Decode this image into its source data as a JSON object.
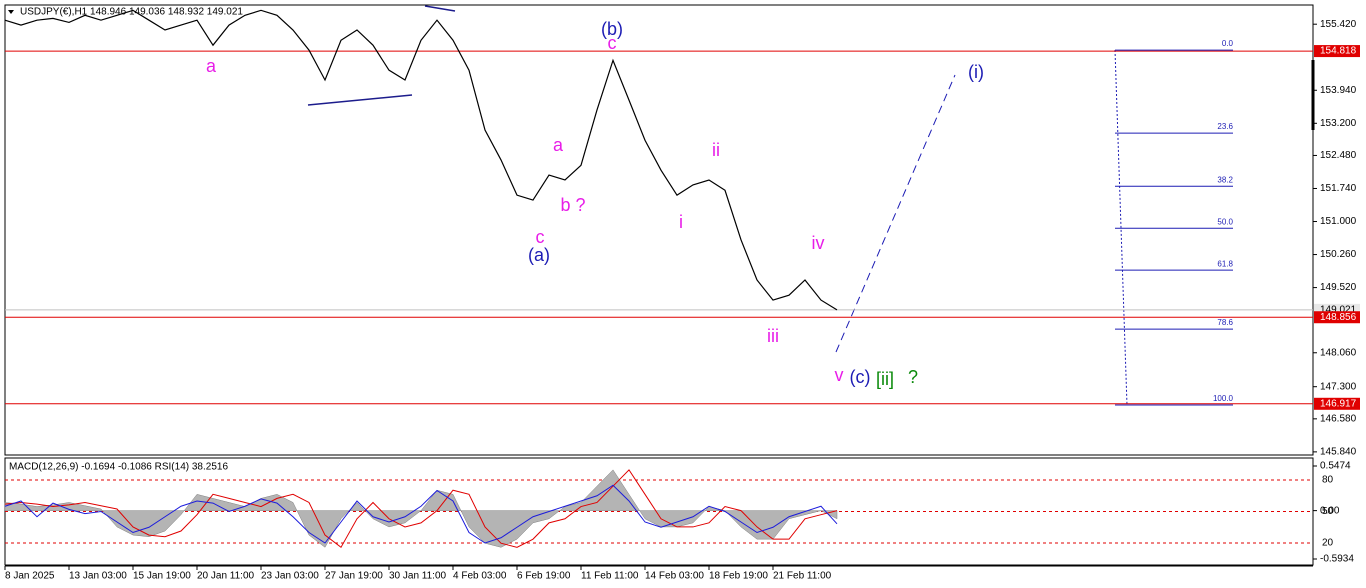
{
  "chart_data": [
    {
      "type": "line",
      "title": "USDJPY(€),H1  148.946 149.036 148.932 149.021",
      "categories": [
        "8 Jan 2025",
        null,
        null,
        null,
        "13 Jan 03:00",
        null,
        null,
        null,
        "15 Jan 19:00",
        null,
        null,
        null,
        "20 Jan 11:00",
        null,
        null,
        null,
        "23 Jan 03:00",
        null,
        null,
        null,
        "27 Jan 19:00",
        null,
        null,
        null,
        "30 Jan 11:00",
        null,
        null,
        null,
        "4 Feb 03:00",
        null,
        null,
        null,
        "6 Feb 19:00",
        null,
        null,
        null,
        "11 Feb 11:00",
        null,
        null,
        null,
        "14 Feb 03:00",
        null,
        null,
        null,
        "18 Feb 19:00",
        null,
        null,
        null,
        "21 Feb 11:00",
        null,
        null,
        null,
        null
      ],
      "series": [
        {
          "color": "#000000",
          "values": [
            155.51,
            155.4,
            155.51,
            155.55,
            155.46,
            155.62,
            155.51,
            155.62,
            155.73,
            155.51,
            155.29,
            155.4,
            155.51,
            154.95,
            155.4,
            155.62,
            155.73,
            155.62,
            155.29,
            154.84,
            154.17,
            155.06,
            155.29,
            154.95,
            154.39,
            154.17,
            155.06,
            155.51,
            155.06,
            154.39,
            153.05,
            152.38,
            151.59,
            151.48,
            152.04,
            151.93,
            152.26,
            153.5,
            154.61,
            153.72,
            152.82,
            152.15,
            151.59,
            151.82,
            151.93,
            151.7,
            150.59,
            149.69,
            149.24,
            149.35,
            149.69,
            149.24,
            149.02
          ]
        }
      ],
      "ylim": [
        145.77,
        155.85
      ],
      "yticks": [
        {
          "value": 155.42,
          "label": "155.420"
        },
        {
          "value": 153.94,
          "label": "153.940"
        },
        {
          "value": 153.2,
          "label": "153.200"
        },
        {
          "value": 152.48,
          "label": "152.480"
        },
        {
          "value": 151.74,
          "label": "151.740"
        },
        {
          "value": 151.0,
          "label": "151.000"
        },
        {
          "value": 150.26,
          "label": "150.260"
        },
        {
          "value": 149.52,
          "label": "149.520"
        },
        {
          "value": 148.06,
          "label": "148.060"
        },
        {
          "value": 147.3,
          "label": "147.300"
        },
        {
          "value": 146.58,
          "label": "146.580"
        },
        {
          "value": 145.84,
          "label": "145.840"
        }
      ],
      "price_levels": [
        154.818,
        148.856,
        146.917
      ],
      "current_price": 149.021,
      "fib_levels": [
        {
          "value": 154.84,
          "label": "0.0"
        },
        {
          "value": 152.98,
          "label": "23.6"
        },
        {
          "value": 151.79,
          "label": "38.2"
        },
        {
          "value": 150.85,
          "label": "50.0"
        },
        {
          "value": 149.91,
          "label": "61.8"
        },
        {
          "value": 148.59,
          "label": "78.6"
        },
        {
          "value": 146.89,
          "label": "100.0"
        }
      ],
      "annotations": [
        {
          "text": "a",
          "color": "#e81ee8"
        },
        {
          "text": "(b)",
          "color": "#1c1cb4"
        },
        {
          "text": "c",
          "color": "#e81ee8"
        },
        {
          "text": "a",
          "color": "#e81ee8"
        },
        {
          "text": "b ?",
          "color": "#e81ee8"
        },
        {
          "text": "c",
          "color": "#e81ee8"
        },
        {
          "text": "(a)",
          "color": "#1c1cb4"
        },
        {
          "text": "ii",
          "color": "#e81ee8"
        },
        {
          "text": "i",
          "color": "#e81ee8"
        },
        {
          "text": "iii",
          "color": "#e81ee8"
        },
        {
          "text": "iv",
          "color": "#e81ee8"
        },
        {
          "text": "v",
          "color": "#e81ee8"
        },
        {
          "text": "(c)",
          "color": "#1c1cb4"
        },
        {
          "text": "[ii]",
          "color": "#0a8a0a"
        },
        {
          "text": "?",
          "color": "#0a8a0a"
        },
        {
          "text": "(i)",
          "color": "#1c1cb4"
        }
      ]
    },
    {
      "type": "indicator",
      "title": "MACD(12,26,9) -0.1694 -0.1086 RSI(14) 38.2516",
      "series": [
        {
          "color": "#b4b4b4",
          "values": [
            0.1,
            0.08,
            0.05,
            0.07,
            0.1,
            0.06,
            0.02,
            -0.2,
            -0.3,
            -0.32,
            -0.25,
            -0.05,
            0.2,
            0.15,
            0.1,
            0.05,
            0.15,
            0.2,
            0.1,
            -0.3,
            -0.45,
            -0.1,
            0.1,
            -0.1,
            -0.2,
            -0.15,
            0.0,
            0.25,
            0.2,
            -0.2,
            -0.4,
            -0.45,
            -0.35,
            -0.15,
            -0.1,
            0.05,
            0.1,
            0.3,
            0.5,
            0.2,
            -0.1,
            -0.2,
            -0.2,
            -0.15,
            0.05,
            0.0,
            -0.2,
            -0.35,
            -0.35,
            -0.1,
            -0.05,
            0.0,
            -0.1
          ]
        },
        {
          "color": "#e00000",
          "values": [
            0.08,
            0.1,
            0.08,
            0.05,
            0.07,
            0.1,
            0.06,
            0.02,
            -0.2,
            -0.3,
            -0.32,
            -0.25,
            -0.05,
            0.2,
            0.15,
            0.1,
            0.05,
            0.15,
            0.2,
            0.1,
            -0.3,
            -0.45,
            -0.1,
            0.1,
            -0.1,
            -0.2,
            -0.15,
            0.0,
            0.25,
            0.2,
            -0.2,
            -0.4,
            -0.45,
            -0.35,
            -0.15,
            -0.1,
            0.05,
            0.1,
            0.3,
            0.5,
            0.2,
            -0.1,
            -0.2,
            -0.2,
            -0.15,
            0.05,
            0.0,
            -0.2,
            -0.35,
            -0.35,
            -0.1,
            -0.05,
            0.0
          ]
        },
        {
          "color": "#1c1cdc",
          "axis": "y2",
          "values": [
            55,
            60,
            45,
            58,
            52,
            48,
            50,
            40,
            30,
            35,
            45,
            55,
            60,
            58,
            50,
            55,
            62,
            58,
            45,
            30,
            20,
            40,
            60,
            45,
            40,
            45,
            55,
            70,
            60,
            30,
            20,
            25,
            35,
            45,
            50,
            55,
            60,
            65,
            75,
            60,
            40,
            35,
            40,
            45,
            55,
            50,
            40,
            30,
            35,
            45,
            50,
            55,
            38.25
          ]
        }
      ],
      "ylim": [
        -0.5934,
        0.5474
      ],
      "yticks": [
        0.5474,
        {
          "value": 0,
          "label": "0.00"
        },
        -0.5934
      ],
      "y2lim": [
        0,
        100
      ],
      "y2ticks": [
        20,
        50,
        80
      ]
    }
  ]
}
